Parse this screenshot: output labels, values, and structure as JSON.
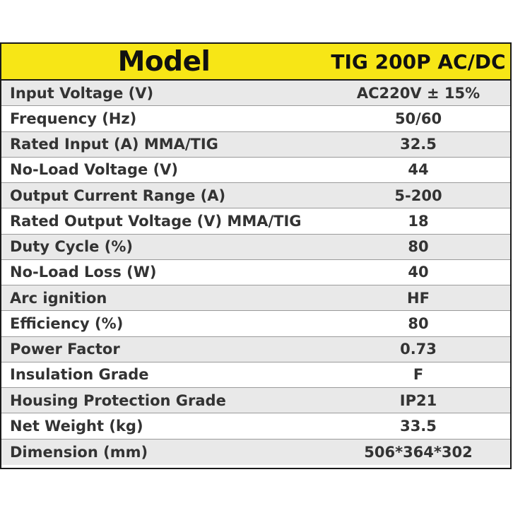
{
  "header": {
    "key": "Model",
    "value": "TIG 200P AC/DC"
  },
  "rows": [
    {
      "label": "Input Voltage (V)",
      "value": "AC220V ± 15%"
    },
    {
      "label": "Frequency (Hz)",
      "value": "50/60"
    },
    {
      "label": "Rated Input (A) MMA/TIG",
      "value": "32.5"
    },
    {
      "label": "No-Load Voltage (V)",
      "value": "44"
    },
    {
      "label": "Output Current Range (A)",
      "value": "5-200"
    },
    {
      "label": "Rated Output Voltage (V) MMA/TIG",
      "value": "18"
    },
    {
      "label": "Duty Cycle (%)",
      "value": "80"
    },
    {
      "label": "No-Load Loss (W)",
      "value": "40"
    },
    {
      "label": "Arc ignition",
      "value": "HF"
    },
    {
      "label": "Efficiency (%)",
      "value": "80"
    },
    {
      "label": "Power Factor",
      "value": "0.73"
    },
    {
      "label": "Insulation Grade",
      "value": "F"
    },
    {
      "label": "Housing Protection Grade",
      "value": "IP21"
    },
    {
      "label": "Net Weight (kg)",
      "value": "33.5"
    },
    {
      "label": "Dimension (mm)",
      "value": "506*364*302"
    }
  ]
}
